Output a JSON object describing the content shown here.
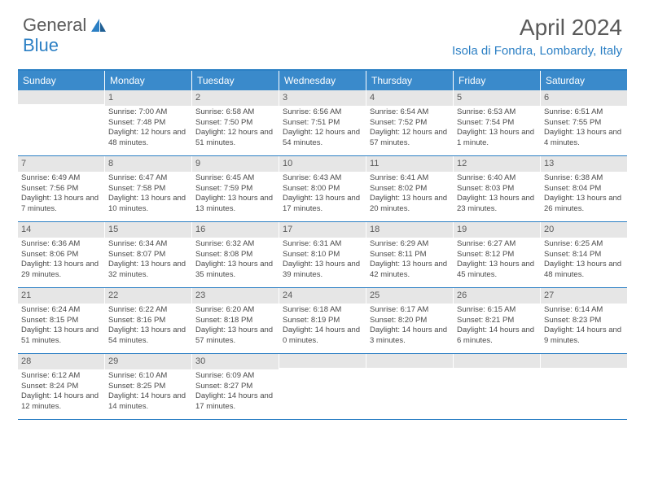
{
  "logo": {
    "text1": "General",
    "text2": "Blue"
  },
  "title": "April 2024",
  "location": "Isola di Fondra, Lombardy, Italy",
  "colors": {
    "accent": "#2b7fc4",
    "header_bg": "#3a8acb",
    "daynum_bg": "#e6e6e6",
    "text": "#5a5a5a"
  },
  "day_headers": [
    "Sunday",
    "Monday",
    "Tuesday",
    "Wednesday",
    "Thursday",
    "Friday",
    "Saturday"
  ],
  "weeks": [
    [
      {
        "n": "",
        "lines": []
      },
      {
        "n": "1",
        "lines": [
          "Sunrise: 7:00 AM",
          "Sunset: 7:48 PM",
          "Daylight: 12 hours and 48 minutes."
        ]
      },
      {
        "n": "2",
        "lines": [
          "Sunrise: 6:58 AM",
          "Sunset: 7:50 PM",
          "Daylight: 12 hours and 51 minutes."
        ]
      },
      {
        "n": "3",
        "lines": [
          "Sunrise: 6:56 AM",
          "Sunset: 7:51 PM",
          "Daylight: 12 hours and 54 minutes."
        ]
      },
      {
        "n": "4",
        "lines": [
          "Sunrise: 6:54 AM",
          "Sunset: 7:52 PM",
          "Daylight: 12 hours and 57 minutes."
        ]
      },
      {
        "n": "5",
        "lines": [
          "Sunrise: 6:53 AM",
          "Sunset: 7:54 PM",
          "Daylight: 13 hours and 1 minute."
        ]
      },
      {
        "n": "6",
        "lines": [
          "Sunrise: 6:51 AM",
          "Sunset: 7:55 PM",
          "Daylight: 13 hours and 4 minutes."
        ]
      }
    ],
    [
      {
        "n": "7",
        "lines": [
          "Sunrise: 6:49 AM",
          "Sunset: 7:56 PM",
          "Daylight: 13 hours and 7 minutes."
        ]
      },
      {
        "n": "8",
        "lines": [
          "Sunrise: 6:47 AM",
          "Sunset: 7:58 PM",
          "Daylight: 13 hours and 10 minutes."
        ]
      },
      {
        "n": "9",
        "lines": [
          "Sunrise: 6:45 AM",
          "Sunset: 7:59 PM",
          "Daylight: 13 hours and 13 minutes."
        ]
      },
      {
        "n": "10",
        "lines": [
          "Sunrise: 6:43 AM",
          "Sunset: 8:00 PM",
          "Daylight: 13 hours and 17 minutes."
        ]
      },
      {
        "n": "11",
        "lines": [
          "Sunrise: 6:41 AM",
          "Sunset: 8:02 PM",
          "Daylight: 13 hours and 20 minutes."
        ]
      },
      {
        "n": "12",
        "lines": [
          "Sunrise: 6:40 AM",
          "Sunset: 8:03 PM",
          "Daylight: 13 hours and 23 minutes."
        ]
      },
      {
        "n": "13",
        "lines": [
          "Sunrise: 6:38 AM",
          "Sunset: 8:04 PM",
          "Daylight: 13 hours and 26 minutes."
        ]
      }
    ],
    [
      {
        "n": "14",
        "lines": [
          "Sunrise: 6:36 AM",
          "Sunset: 8:06 PM",
          "Daylight: 13 hours and 29 minutes."
        ]
      },
      {
        "n": "15",
        "lines": [
          "Sunrise: 6:34 AM",
          "Sunset: 8:07 PM",
          "Daylight: 13 hours and 32 minutes."
        ]
      },
      {
        "n": "16",
        "lines": [
          "Sunrise: 6:32 AM",
          "Sunset: 8:08 PM",
          "Daylight: 13 hours and 35 minutes."
        ]
      },
      {
        "n": "17",
        "lines": [
          "Sunrise: 6:31 AM",
          "Sunset: 8:10 PM",
          "Daylight: 13 hours and 39 minutes."
        ]
      },
      {
        "n": "18",
        "lines": [
          "Sunrise: 6:29 AM",
          "Sunset: 8:11 PM",
          "Daylight: 13 hours and 42 minutes."
        ]
      },
      {
        "n": "19",
        "lines": [
          "Sunrise: 6:27 AM",
          "Sunset: 8:12 PM",
          "Daylight: 13 hours and 45 minutes."
        ]
      },
      {
        "n": "20",
        "lines": [
          "Sunrise: 6:25 AM",
          "Sunset: 8:14 PM",
          "Daylight: 13 hours and 48 minutes."
        ]
      }
    ],
    [
      {
        "n": "21",
        "lines": [
          "Sunrise: 6:24 AM",
          "Sunset: 8:15 PM",
          "Daylight: 13 hours and 51 minutes."
        ]
      },
      {
        "n": "22",
        "lines": [
          "Sunrise: 6:22 AM",
          "Sunset: 8:16 PM",
          "Daylight: 13 hours and 54 minutes."
        ]
      },
      {
        "n": "23",
        "lines": [
          "Sunrise: 6:20 AM",
          "Sunset: 8:18 PM",
          "Daylight: 13 hours and 57 minutes."
        ]
      },
      {
        "n": "24",
        "lines": [
          "Sunrise: 6:18 AM",
          "Sunset: 8:19 PM",
          "Daylight: 14 hours and 0 minutes."
        ]
      },
      {
        "n": "25",
        "lines": [
          "Sunrise: 6:17 AM",
          "Sunset: 8:20 PM",
          "Daylight: 14 hours and 3 minutes."
        ]
      },
      {
        "n": "26",
        "lines": [
          "Sunrise: 6:15 AM",
          "Sunset: 8:21 PM",
          "Daylight: 14 hours and 6 minutes."
        ]
      },
      {
        "n": "27",
        "lines": [
          "Sunrise: 6:14 AM",
          "Sunset: 8:23 PM",
          "Daylight: 14 hours and 9 minutes."
        ]
      }
    ],
    [
      {
        "n": "28",
        "lines": [
          "Sunrise: 6:12 AM",
          "Sunset: 8:24 PM",
          "Daylight: 14 hours and 12 minutes."
        ]
      },
      {
        "n": "29",
        "lines": [
          "Sunrise: 6:10 AM",
          "Sunset: 8:25 PM",
          "Daylight: 14 hours and 14 minutes."
        ]
      },
      {
        "n": "30",
        "lines": [
          "Sunrise: 6:09 AM",
          "Sunset: 8:27 PM",
          "Daylight: 14 hours and 17 minutes."
        ]
      },
      {
        "n": "",
        "lines": []
      },
      {
        "n": "",
        "lines": []
      },
      {
        "n": "",
        "lines": []
      },
      {
        "n": "",
        "lines": []
      }
    ]
  ]
}
